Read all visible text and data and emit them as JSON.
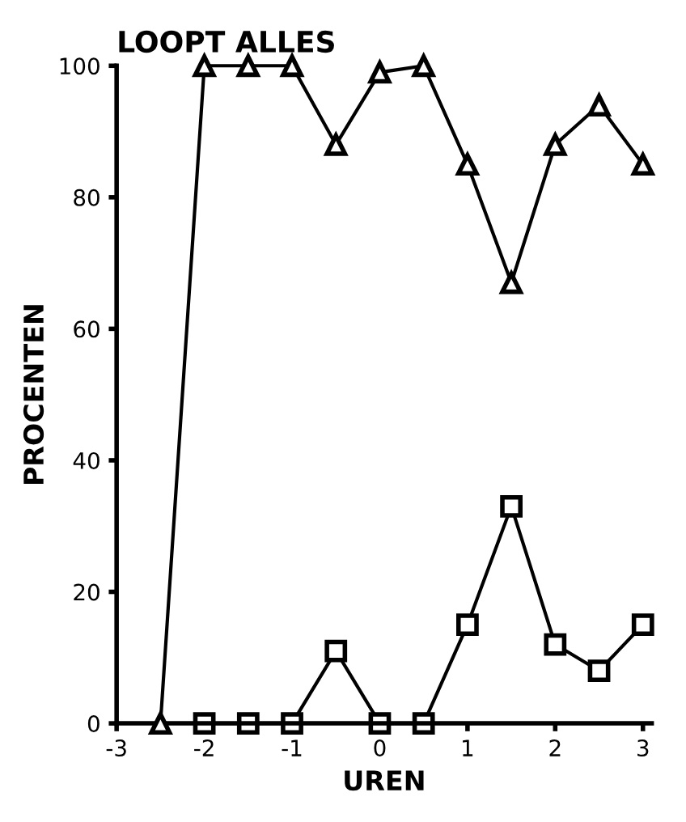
{
  "chart_data": {
    "type": "line",
    "title": "LOOPT ALLES",
    "xlabel": "UREN",
    "ylabel": "PROCENTEN",
    "x": [
      -2.5,
      -2,
      -1.5,
      -1,
      -0.5,
      0,
      0.5,
      1,
      1.5,
      2,
      2.5,
      3
    ],
    "series": [
      {
        "color": "#000000",
        "marker": "triangle",
        "values": [
          0,
          100,
          100,
          100,
          88,
          99,
          100,
          85,
          67,
          88,
          94,
          85
        ]
      },
      {
        "color": "#000000",
        "marker": "square",
        "values": [
          null,
          0,
          0,
          0,
          11,
          0,
          0,
          15,
          33,
          12,
          8,
          15
        ]
      }
    ],
    "xlim": [
      -3,
      3.1
    ],
    "xticks": [
      -3,
      -2,
      -1,
      0,
      1,
      2,
      3
    ],
    "ylim": [
      0,
      100
    ],
    "yticks": [
      0,
      20,
      40,
      60,
      80,
      100
    ],
    "grid": false,
    "legend": false,
    "line_style": "solid"
  }
}
